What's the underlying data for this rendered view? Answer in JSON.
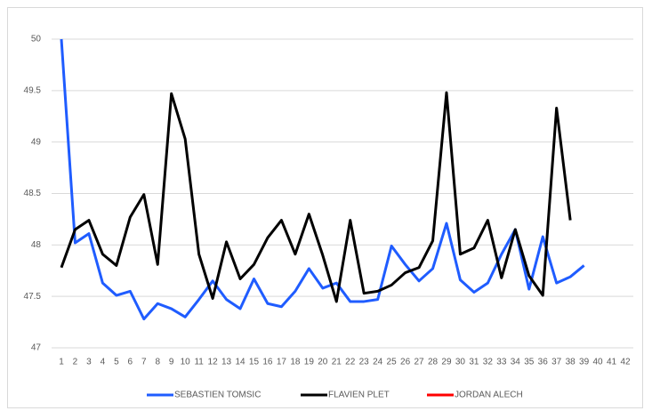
{
  "chart_data": {
    "type": "line",
    "categories": [
      1,
      2,
      3,
      4,
      5,
      6,
      7,
      8,
      9,
      10,
      11,
      12,
      13,
      14,
      15,
      16,
      17,
      18,
      19,
      20,
      21,
      22,
      23,
      24,
      25,
      26,
      27,
      28,
      29,
      30,
      31,
      32,
      33,
      34,
      35,
      36,
      37,
      38,
      39,
      40,
      41,
      42
    ],
    "series": [
      {
        "name": "SEBASTIEN TOMSIC",
        "color": "#1f5cff",
        "values": [
          50,
          48.02,
          48.11,
          47.63,
          47.51,
          47.55,
          47.28,
          47.43,
          47.38,
          47.3,
          47.47,
          47.65,
          47.47,
          47.38,
          47.67,
          47.43,
          47.4,
          47.55,
          47.77,
          47.58,
          47.63,
          47.45,
          47.45,
          47.47,
          47.99,
          47.81,
          47.65,
          47.77,
          48.21,
          47.66,
          47.54,
          47.63,
          47.91,
          48.15,
          47.57,
          48.08,
          47.63,
          47.69,
          47.8,
          null,
          null,
          null
        ]
      },
      {
        "name": "FLAVIEN PLET",
        "color": "#000000",
        "values": [
          47.78,
          48.15,
          48.24,
          47.91,
          47.8,
          48.27,
          48.49,
          47.81,
          49.47,
          49.03,
          47.91,
          47.48,
          48.03,
          47.67,
          47.81,
          48.07,
          48.24,
          47.91,
          48.3,
          47.9,
          47.45,
          48.24,
          47.53,
          47.55,
          47.61,
          47.73,
          47.78,
          48.04,
          49.48,
          47.91,
          47.97,
          48.24,
          47.68,
          48.15,
          47.7,
          47.51,
          49.33,
          48.24,
          null,
          null,
          null,
          null
        ]
      },
      {
        "name": "JORDAN ALECH",
        "color": "#ff0000",
        "values": [
          null,
          null,
          null,
          null,
          null,
          null,
          null,
          null,
          null,
          null,
          null,
          null,
          null,
          null,
          null,
          null,
          null,
          null,
          null,
          null,
          null,
          null,
          null,
          null,
          null,
          null,
          null,
          null,
          null,
          null,
          null,
          null,
          null,
          null,
          null,
          null,
          null,
          null,
          null,
          null,
          null,
          null
        ]
      }
    ],
    "ylim": [
      47,
      50
    ],
    "yticks": [
      47,
      47.5,
      48,
      48.5,
      49,
      49.5,
      50
    ],
    "grid": true,
    "legend": "bottom"
  }
}
